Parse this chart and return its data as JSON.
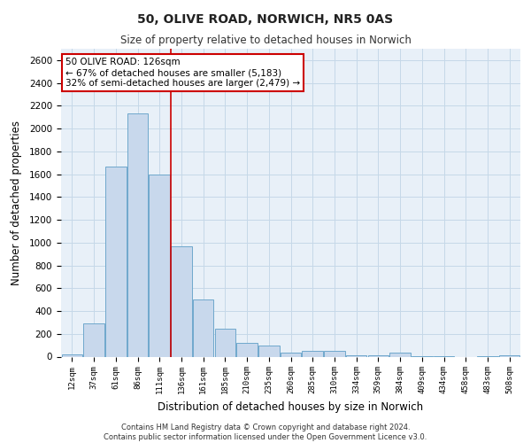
{
  "title_line1": "50, OLIVE ROAD, NORWICH, NR5 0AS",
  "title_line2": "Size of property relative to detached houses in Norwich",
  "xlabel": "Distribution of detached houses by size in Norwich",
  "ylabel": "Number of detached properties",
  "categories": [
    "12sqm",
    "37sqm",
    "61sqm",
    "86sqm",
    "111sqm",
    "136sqm",
    "161sqm",
    "185sqm",
    "210sqm",
    "235sqm",
    "260sqm",
    "285sqm",
    "310sqm",
    "334sqm",
    "359sqm",
    "384sqm",
    "409sqm",
    "434sqm",
    "458sqm",
    "483sqm",
    "508sqm"
  ],
  "values": [
    18,
    290,
    1670,
    2130,
    1600,
    970,
    500,
    245,
    120,
    100,
    35,
    50,
    50,
    15,
    10,
    35,
    5,
    5,
    0,
    5,
    10
  ],
  "bar_color": "#c8d8ec",
  "bar_edge_color": "#6fa8cc",
  "grid_color": "#c5d8e8",
  "background_color": "#e8f0f8",
  "vline_x": 4.5,
  "vline_color": "#cc0000",
  "annotation_text": "50 OLIVE ROAD: 126sqm\n← 67% of detached houses are smaller (5,183)\n32% of semi-detached houses are larger (2,479) →",
  "annotation_box_color": "#ffffff",
  "annotation_border_color": "#cc0000",
  "ylim": [
    0,
    2700
  ],
  "yticks": [
    0,
    200,
    400,
    600,
    800,
    1000,
    1200,
    1400,
    1600,
    1800,
    2000,
    2200,
    2400,
    2600
  ],
  "footer_line1": "Contains HM Land Registry data © Crown copyright and database right 2024.",
  "footer_line2": "Contains public sector information licensed under the Open Government Licence v3.0."
}
